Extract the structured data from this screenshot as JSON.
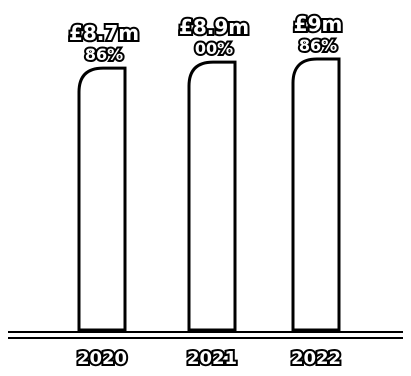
{
  "chart_data": {
    "type": "bar",
    "categories": [
      "2020",
      "2021",
      "2022"
    ],
    "series": [
      {
        "values": [
          8.7,
          8.9,
          9.0
        ]
      }
    ],
    "value_labels": [
      "£8.7m",
      "£8.9m",
      "£9m"
    ],
    "percent_labels": [
      "86%",
      "00%",
      "86%"
    ],
    "ylim": [
      0,
      9.5
    ],
    "grid": false,
    "title": "",
    "xlabel": "",
    "ylabel": ""
  },
  "colors": {
    "bar_fill": "#ffffff",
    "outline": "#000000",
    "background": "#ffffff"
  }
}
